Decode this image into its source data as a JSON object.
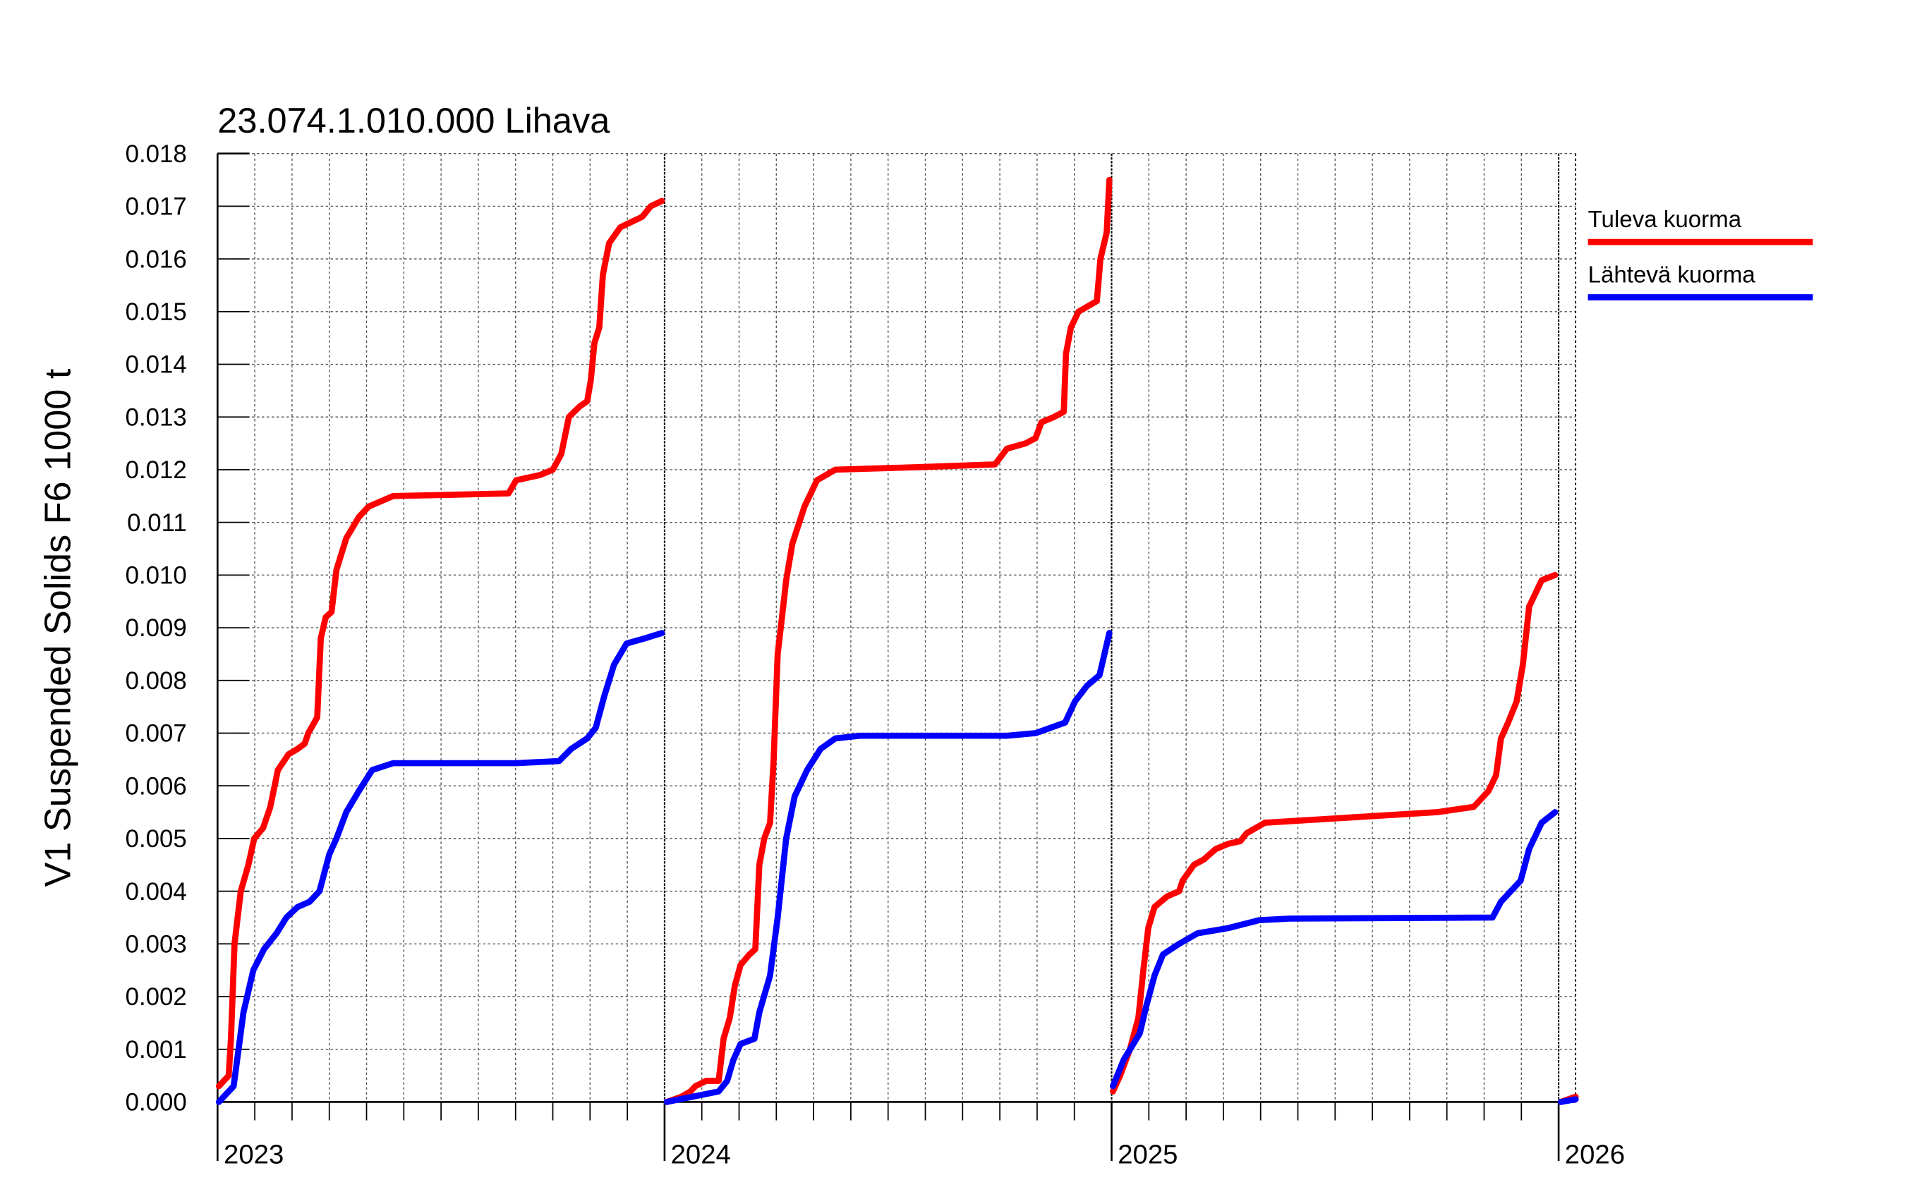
{
  "chart_data": {
    "type": "line",
    "title": "23.074.1.010.000 Lihava",
    "ylabel": "V1 Suspended Solids F6 1000 t",
    "xlim": [
      2023,
      2026.038
    ],
    "xticks": [
      2023,
      2024,
      2025,
      2026
    ],
    "ylim": [
      0,
      0.018
    ],
    "yticks": [
      {
        "value": 0,
        "label": "0.000"
      },
      {
        "value": 0.001,
        "label": "0.001"
      },
      {
        "value": 0.002,
        "label": "0.002"
      },
      {
        "value": 0.003,
        "label": "0.003"
      },
      {
        "value": 0.004,
        "label": "0.004"
      },
      {
        "value": 0.005,
        "label": "0.005"
      },
      {
        "value": 0.006,
        "label": "0.006"
      },
      {
        "value": 0.007,
        "label": "0.007"
      },
      {
        "value": 0.008,
        "label": "0.008"
      },
      {
        "value": 0.009,
        "label": "0.009"
      },
      {
        "value": 0.01,
        "label": "0.010"
      },
      {
        "value": 0.011,
        "label": "0.011"
      },
      {
        "value": 0.012,
        "label": "0.012"
      },
      {
        "value": 0.013,
        "label": "0.013"
      },
      {
        "value": 0.014,
        "label": "0.014"
      },
      {
        "value": 0.015,
        "label": "0.015"
      },
      {
        "value": 0.016,
        "label": "0.016"
      },
      {
        "value": 0.017,
        "label": "0.017"
      },
      {
        "value": 0.018,
        "label": "0.018"
      }
    ],
    "grid": true,
    "legend": "right",
    "series": [
      {
        "name": "Tuleva kuorma",
        "color": "#ff0000",
        "x": [
          2023.003,
          2023.025,
          2023.03,
          2023.038,
          2023.052,
          2023.069,
          2023.082,
          2023.102,
          2023.118,
          2023.135,
          2023.159,
          2023.179,
          2023.195,
          2023.203,
          2023.223,
          2023.231,
          2023.242,
          2023.255,
          2023.266,
          2023.288,
          2023.316,
          2023.338,
          2023.393,
          2023.503,
          2023.651,
          2023.668,
          2023.722,
          2023.75,
          2023.769,
          2023.786,
          2023.81,
          2023.827,
          2023.835,
          2023.843,
          2023.854,
          2023.862,
          2023.876,
          2023.901,
          2023.95,
          2023.969,
          2023.994,
          2024.0,
          2024.005,
          2024.038,
          2024.058,
          2024.069,
          2024.093,
          2024.121,
          2024.132,
          2024.146,
          2024.157,
          2024.17,
          2024.19,
          2024.203,
          2024.212,
          2024.223,
          2024.236,
          2024.244,
          2024.253,
          2024.264,
          2024.272,
          2024.286,
          2024.313,
          2024.341,
          2024.382,
          2024.574,
          2024.739,
          2024.766,
          2024.808,
          2024.83,
          2024.843,
          2024.871,
          2024.893,
          2024.898,
          2024.909,
          2024.926,
          2024.967,
          2024.975,
          2024.989,
          2024.995,
          2025.0,
          2025.003,
          2025.019,
          2025.041,
          2025.06,
          2025.071,
          2025.082,
          2025.096,
          2025.124,
          2025.151,
          2025.159,
          2025.184,
          2025.206,
          2025.233,
          2025.261,
          2025.288,
          2025.302,
          2025.343,
          2025.536,
          2025.728,
          2025.81,
          2025.843,
          2025.86,
          2025.871,
          2025.887,
          2025.906,
          2025.92,
          2025.934,
          2025.962,
          2025.992,
          2026.0,
          2026.005,
          2026.038
        ],
        "values": [
          0.0003,
          0.0005,
          0.0012,
          0.003,
          0.004,
          0.0045,
          0.005,
          0.0052,
          0.0056,
          0.0063,
          0.0066,
          0.0067,
          0.0068,
          0.007,
          0.0073,
          0.0088,
          0.0092,
          0.0093,
          0.0101,
          0.0107,
          0.0111,
          0.0113,
          0.0115,
          0.01152,
          0.01155,
          0.0118,
          0.0119,
          0.012,
          0.0123,
          0.013,
          0.0132,
          0.0133,
          0.0137,
          0.0144,
          0.0147,
          0.0157,
          0.0163,
          0.0166,
          0.0168,
          0.017,
          0.0171,
          null,
          0.0,
          0.0001,
          0.0002,
          0.0003,
          0.0004,
          0.0004,
          0.0012,
          0.0016,
          0.0022,
          0.0026,
          0.0028,
          0.0029,
          0.0045,
          0.005,
          0.0053,
          0.0065,
          0.0085,
          0.0093,
          0.0099,
          0.0106,
          0.0113,
          0.0118,
          0.012,
          0.01205,
          0.0121,
          0.0124,
          0.0125,
          0.0126,
          0.0129,
          0.013,
          0.0131,
          0.0142,
          0.0147,
          0.015,
          0.0152,
          0.016,
          0.0165,
          0.0175,
          null,
          0.0002,
          0.0005,
          0.001,
          0.0016,
          0.0025,
          0.0033,
          0.0037,
          0.0039,
          0.004,
          0.0042,
          0.0045,
          0.0046,
          0.0048,
          0.0049,
          0.00495,
          0.0051,
          0.0053,
          0.0054,
          0.0055,
          0.0056,
          0.0059,
          0.0062,
          0.0069,
          0.0072,
          0.0076,
          0.0083,
          0.0094,
          0.0099,
          0.01,
          null,
          0.0,
          0.0001
        ]
      },
      {
        "name": "Lähtevä kuorma",
        "color": "#0000ff",
        "x": [
          2023.003,
          2023.036,
          2023.047,
          2023.058,
          2023.08,
          2023.104,
          2023.132,
          2023.154,
          2023.179,
          2023.206,
          2023.228,
          2023.25,
          2023.266,
          2023.288,
          2023.316,
          2023.346,
          2023.393,
          2023.668,
          2023.764,
          2023.791,
          2023.827,
          2023.846,
          2023.865,
          2023.887,
          2023.915,
          2023.956,
          2023.994,
          2024.0,
          2024.005,
          2024.121,
          2024.14,
          2024.154,
          2024.17,
          2024.201,
          2024.212,
          2024.236,
          2024.253,
          2024.272,
          2024.291,
          2024.319,
          2024.349,
          2024.382,
          2024.437,
          2024.766,
          2024.83,
          2024.863,
          2024.896,
          2024.918,
          2024.945,
          2024.973,
          2024.995,
          2025.0,
          2025.003,
          2025.027,
          2025.063,
          2025.077,
          2025.096,
          2025.115,
          2025.151,
          2025.192,
          2025.261,
          2025.33,
          2025.398,
          2025.852,
          2025.871,
          2025.915,
          2025.934,
          2025.962,
          2025.992,
          2026.0,
          2026.005,
          2026.038
        ],
        "values": [
          0.0,
          0.0003,
          0.001,
          0.0017,
          0.0025,
          0.0029,
          0.0032,
          0.0035,
          0.0037,
          0.0038,
          0.004,
          0.0047,
          0.005,
          0.0055,
          0.0059,
          0.0063,
          0.00643,
          0.00643,
          0.00647,
          0.0067,
          0.0069,
          0.0071,
          0.0077,
          0.0083,
          0.0087,
          0.0088,
          0.0089,
          null,
          0.0,
          0.0002,
          0.0004,
          0.0008,
          0.0011,
          0.0012,
          0.0017,
          0.0024,
          0.0035,
          0.005,
          0.0058,
          0.0063,
          0.0067,
          0.0069,
          0.00695,
          0.00695,
          0.007,
          0.0071,
          0.0072,
          0.0076,
          0.0079,
          0.0081,
          0.0089,
          null,
          0.0003,
          0.0008,
          0.0013,
          0.0018,
          0.0024,
          0.0028,
          0.003,
          0.0032,
          0.0033,
          0.00345,
          0.00348,
          0.0035,
          0.0038,
          0.0042,
          0.0048,
          0.0053,
          0.0055,
          null,
          0.0,
          5e-05
        ]
      }
    ]
  }
}
